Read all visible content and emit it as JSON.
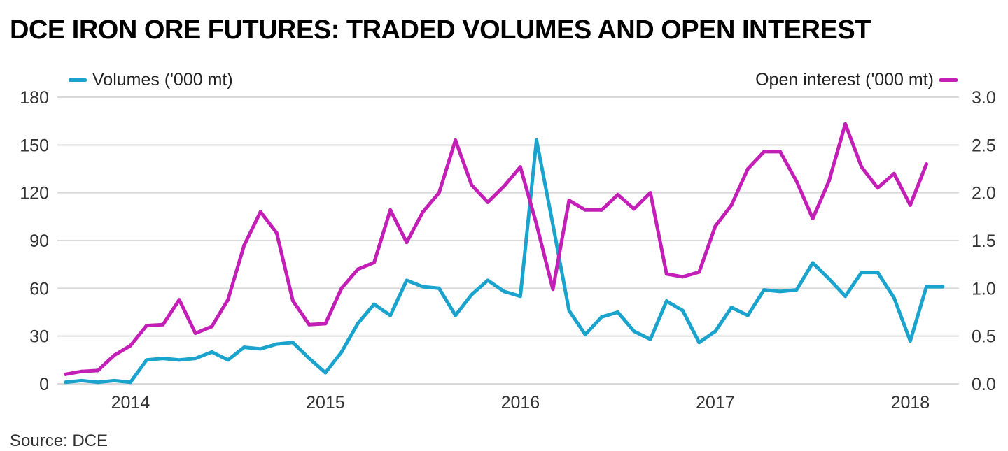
{
  "title": "DCE IRON ORE FUTURES: TRADED VOLUMES AND OPEN INTEREST",
  "source": "Source: DCE",
  "colors": {
    "volumes": "#1aa3cc",
    "open_interest": "#c31fb7",
    "grid": "#d9d9d9"
  },
  "chart_data": {
    "type": "line",
    "title": "DCE IRON ORE FUTURES: TRADED VOLUMES AND OPEN INTEREST",
    "x_ticks": [
      {
        "label": "2014",
        "t": 2014.0
      },
      {
        "label": "2015",
        "t": 2015.0
      },
      {
        "label": "2016",
        "t": 2016.0
      },
      {
        "label": "2017",
        "t": 2017.0
      },
      {
        "label": "2018",
        "t": 2018.0
      }
    ],
    "x_range": [
      2013.625,
      2018.25
    ],
    "y_left": {
      "label": "Volumes ('000 mt)",
      "range": [
        0,
        180
      ],
      "ticks": [
        "0",
        "30",
        "60",
        "90",
        "120",
        "150",
        "180"
      ]
    },
    "y_right": {
      "label": "Open interest ('000 mt)",
      "range": [
        0,
        3.0
      ],
      "ticks": [
        "0.0",
        "0.5",
        "1.0",
        "1.5",
        "2.0",
        "2.5",
        "3.0"
      ]
    },
    "grid": true,
    "legend": [
      {
        "name": "Volumes ('000 mt)",
        "position": "top-left"
      },
      {
        "name": "Open interest ('000 mt)",
        "position": "top-right"
      }
    ],
    "series": [
      {
        "name": "Volumes ('000 mt)",
        "axis": "left",
        "t": [
          2013.667,
          2013.75,
          2013.833,
          2013.917,
          2014.0,
          2014.083,
          2014.167,
          2014.25,
          2014.333,
          2014.417,
          2014.5,
          2014.583,
          2014.667,
          2014.75,
          2014.833,
          2014.917,
          2015.0,
          2015.083,
          2015.167,
          2015.25,
          2015.333,
          2015.417,
          2015.5,
          2015.583,
          2015.667,
          2015.75,
          2015.833,
          2015.917,
          2016.0,
          2016.083,
          2016.167,
          2016.25,
          2016.333,
          2016.417,
          2016.5,
          2016.583,
          2016.667,
          2016.75,
          2016.833,
          2016.917,
          2017.0,
          2017.083,
          2017.167,
          2017.25,
          2017.333,
          2017.417,
          2017.5,
          2017.583,
          2017.667,
          2017.75,
          2017.833,
          2017.917,
          2018.0,
          2018.083,
          2018.167
        ],
        "values": [
          1,
          2,
          1,
          2,
          1,
          15,
          16,
          15,
          16,
          20,
          15,
          23,
          22,
          25,
          26,
          16,
          7,
          20,
          38,
          50,
          43,
          65,
          61,
          60,
          43,
          56,
          65,
          58,
          55,
          153,
          100,
          46,
          31,
          42,
          45,
          33,
          28,
          52,
          46,
          26,
          33,
          48,
          43,
          59,
          58,
          59,
          76,
          66,
          55,
          70,
          70,
          54,
          27,
          61,
          61
        ]
      },
      {
        "name": "Open interest ('000 mt)",
        "axis": "right",
        "t": [
          2013.667,
          2013.75,
          2013.833,
          2013.917,
          2014.0,
          2014.083,
          2014.167,
          2014.25,
          2014.333,
          2014.417,
          2014.5,
          2014.583,
          2014.667,
          2014.75,
          2014.833,
          2014.917,
          2015.0,
          2015.083,
          2015.167,
          2015.25,
          2015.333,
          2015.417,
          2015.5,
          2015.583,
          2015.667,
          2015.75,
          2015.833,
          2015.917,
          2016.0,
          2016.083,
          2016.167,
          2016.25,
          2016.333,
          2016.417,
          2016.5,
          2016.583,
          2016.667,
          2016.75,
          2016.833,
          2016.917,
          2017.0,
          2017.083,
          2017.167,
          2017.25,
          2017.333,
          2017.417,
          2017.5,
          2017.583,
          2017.667,
          2017.75,
          2017.833,
          2017.917,
          2018.0,
          2018.083
        ],
        "values": [
          0.1,
          0.13,
          0.14,
          0.3,
          0.4,
          0.61,
          0.62,
          0.88,
          0.53,
          0.6,
          0.88,
          1.45,
          1.8,
          1.58,
          0.87,
          0.62,
          0.63,
          1.0,
          1.2,
          1.27,
          1.82,
          1.48,
          1.8,
          2.0,
          2.55,
          2.08,
          1.9,
          2.07,
          2.27,
          1.67,
          0.99,
          1.92,
          1.82,
          1.82,
          1.98,
          1.83,
          2.0,
          1.15,
          1.12,
          1.17,
          1.65,
          1.87,
          2.25,
          2.43,
          2.43,
          2.12,
          1.73,
          2.12,
          2.72,
          2.27,
          2.05,
          2.2,
          1.87,
          2.3
        ]
      }
    ]
  }
}
